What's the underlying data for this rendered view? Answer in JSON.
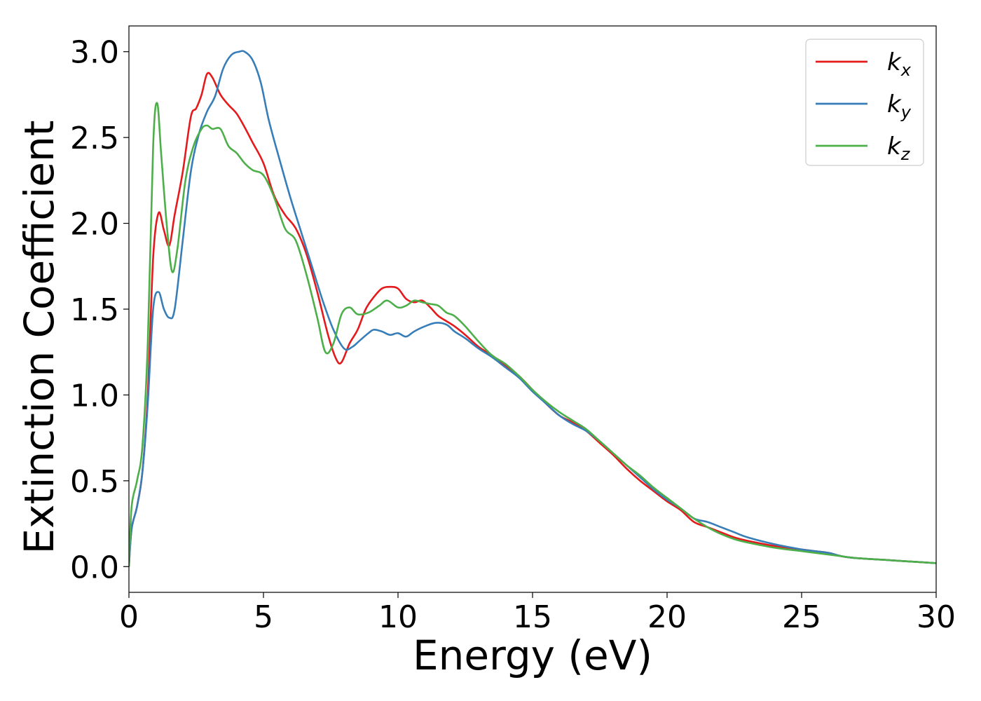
{
  "chart_data": {
    "type": "line",
    "xlabel": "Energy (eV)",
    "ylabel": "Extinction Coefficient",
    "xlim": [
      0,
      30
    ],
    "ylim": [
      -0.15,
      3.15
    ],
    "xticks": [
      0,
      5,
      10,
      15,
      20,
      25,
      30
    ],
    "xtick_labels": [
      "0",
      "5",
      "10",
      "15",
      "20",
      "25",
      "30"
    ],
    "yticks": [
      0.0,
      0.5,
      1.0,
      1.5,
      2.0,
      2.5,
      3.0
    ],
    "ytick_labels": [
      "0.0",
      "0.5",
      "1.0",
      "1.5",
      "2.0",
      "2.5",
      "3.0"
    ],
    "grid": false,
    "legend_position": "top-right",
    "series": [
      {
        "name": "k",
        "subscript": "x",
        "color": "#e41a1c",
        "x": [
          0,
          0.1,
          0.3,
          0.5,
          0.7,
          0.9,
          1.1,
          1.3,
          1.5,
          1.7,
          2.0,
          2.3,
          2.5,
          2.7,
          2.9,
          3.1,
          3.4,
          3.7,
          4.0,
          4.3,
          4.6,
          5.0,
          5.4,
          5.8,
          6.2,
          6.6,
          7.0,
          7.4,
          7.7,
          7.9,
          8.2,
          8.5,
          8.8,
          9.1,
          9.4,
          9.7,
          10.0,
          10.3,
          10.6,
          10.9,
          11.2,
          11.5,
          11.8,
          12.1,
          12.5,
          13.0,
          13.5,
          14.0,
          14.5,
          15.0,
          15.5,
          16.0,
          16.5,
          17.0,
          17.5,
          18.0,
          18.5,
          19.0,
          19.5,
          20.0,
          20.5,
          21.0,
          21.5,
          22.0,
          22.5,
          23.0,
          24.0,
          25.0,
          25.5,
          26.0,
          26.5,
          27.0,
          28.0,
          29.0,
          30.0
        ],
        "y": [
          0.0,
          0.22,
          0.35,
          0.55,
          1.0,
          1.8,
          2.06,
          1.96,
          1.87,
          2.05,
          2.3,
          2.62,
          2.67,
          2.75,
          2.87,
          2.85,
          2.75,
          2.69,
          2.64,
          2.56,
          2.47,
          2.35,
          2.16,
          2.05,
          1.97,
          1.82,
          1.6,
          1.35,
          1.21,
          1.19,
          1.3,
          1.38,
          1.5,
          1.57,
          1.62,
          1.63,
          1.62,
          1.56,
          1.54,
          1.55,
          1.51,
          1.46,
          1.43,
          1.4,
          1.35,
          1.28,
          1.23,
          1.17,
          1.11,
          1.03,
          0.95,
          0.88,
          0.84,
          0.79,
          0.72,
          0.65,
          0.57,
          0.5,
          0.44,
          0.38,
          0.33,
          0.26,
          0.23,
          0.2,
          0.17,
          0.15,
          0.12,
          0.1,
          0.09,
          0.08,
          0.06,
          0.05,
          0.04,
          0.03,
          0.02
        ]
      },
      {
        "name": "k",
        "subscript": "y",
        "color": "#377eb8",
        "x": [
          0,
          0.1,
          0.3,
          0.5,
          0.7,
          0.9,
          1.1,
          1.3,
          1.5,
          1.7,
          2.0,
          2.3,
          2.6,
          2.9,
          3.2,
          3.5,
          3.8,
          4.1,
          4.3,
          4.6,
          4.9,
          5.2,
          5.6,
          6.0,
          6.4,
          6.8,
          7.2,
          7.6,
          8.0,
          8.3,
          8.6,
          8.9,
          9.1,
          9.4,
          9.7,
          10.0,
          10.3,
          10.6,
          11.0,
          11.4,
          11.8,
          12.1,
          12.5,
          13.0,
          13.5,
          14.0,
          14.5,
          15.0,
          15.5,
          16.0,
          16.5,
          17.0,
          17.5,
          18.0,
          18.5,
          19.0,
          19.5,
          20.0,
          20.5,
          21.0,
          21.5,
          22.0,
          22.5,
          23.0,
          24.0,
          25.0,
          25.5,
          26.0,
          26.5,
          27.0,
          28.0,
          29.0,
          30.0
        ],
        "y": [
          0.0,
          0.22,
          0.35,
          0.55,
          0.95,
          1.5,
          1.6,
          1.5,
          1.45,
          1.5,
          1.9,
          2.3,
          2.52,
          2.65,
          2.74,
          2.9,
          2.98,
          3.0,
          3.0,
          2.95,
          2.82,
          2.6,
          2.37,
          2.15,
          1.95,
          1.75,
          1.55,
          1.38,
          1.27,
          1.28,
          1.32,
          1.36,
          1.38,
          1.37,
          1.35,
          1.36,
          1.34,
          1.37,
          1.4,
          1.42,
          1.41,
          1.37,
          1.33,
          1.27,
          1.22,
          1.16,
          1.1,
          1.02,
          0.95,
          0.88,
          0.83,
          0.79,
          0.73,
          0.66,
          0.59,
          0.52,
          0.45,
          0.39,
          0.34,
          0.28,
          0.26,
          0.23,
          0.2,
          0.17,
          0.13,
          0.1,
          0.09,
          0.08,
          0.06,
          0.05,
          0.04,
          0.03,
          0.02
        ]
      },
      {
        "name": "k",
        "subscript": "z",
        "color": "#4daf4a",
        "x": [
          0,
          0.1,
          0.3,
          0.5,
          0.7,
          0.9,
          1.05,
          1.2,
          1.4,
          1.6,
          1.8,
          2.1,
          2.4,
          2.7,
          2.9,
          3.1,
          3.4,
          3.7,
          4.0,
          4.3,
          4.6,
          5.0,
          5.4,
          5.8,
          6.2,
          6.6,
          7.0,
          7.3,
          7.6,
          7.9,
          8.2,
          8.5,
          8.9,
          9.3,
          9.6,
          10.0,
          10.3,
          10.6,
          10.9,
          11.2,
          11.5,
          11.8,
          12.1,
          12.5,
          13.0,
          13.5,
          14.0,
          14.5,
          15.0,
          15.5,
          16.0,
          16.5,
          17.0,
          17.5,
          18.0,
          18.5,
          19.0,
          19.5,
          20.0,
          20.5,
          21.0,
          21.5,
          22.0,
          22.5,
          23.0,
          24.0,
          25.0,
          25.5,
          26.0,
          26.5,
          27.0,
          28.0,
          29.0,
          30.0
        ],
        "y": [
          0.0,
          0.35,
          0.5,
          0.7,
          1.3,
          2.45,
          2.7,
          2.4,
          2.0,
          1.72,
          1.85,
          2.25,
          2.45,
          2.55,
          2.57,
          2.55,
          2.55,
          2.45,
          2.41,
          2.35,
          2.31,
          2.28,
          2.15,
          1.97,
          1.9,
          1.7,
          1.45,
          1.25,
          1.3,
          1.47,
          1.51,
          1.47,
          1.48,
          1.52,
          1.55,
          1.51,
          1.52,
          1.55,
          1.54,
          1.53,
          1.52,
          1.48,
          1.46,
          1.4,
          1.31,
          1.23,
          1.18,
          1.11,
          1.03,
          0.96,
          0.9,
          0.85,
          0.8,
          0.73,
          0.66,
          0.59,
          0.53,
          0.46,
          0.4,
          0.34,
          0.28,
          0.23,
          0.19,
          0.16,
          0.14,
          0.11,
          0.09,
          0.08,
          0.07,
          0.06,
          0.05,
          0.04,
          0.03,
          0.02
        ]
      }
    ]
  }
}
